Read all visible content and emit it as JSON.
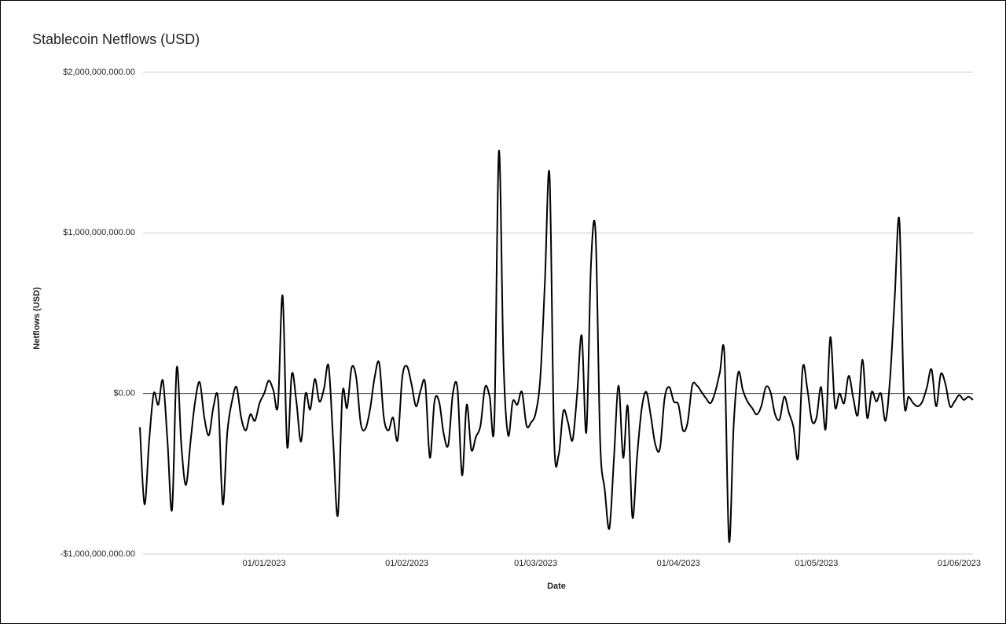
{
  "chart_data": {
    "type": "line",
    "title": "Stablecoin Netflows (USD)",
    "x_label": "Date",
    "y_label": "Netflows (USD)",
    "x": [
      "2022-12-05",
      "2022-12-06",
      "2022-12-07",
      "2022-12-08",
      "2022-12-09",
      "2022-12-10",
      "2022-12-11",
      "2022-12-12",
      "2022-12-13",
      "2022-12-14",
      "2022-12-15",
      "2022-12-16",
      "2022-12-17",
      "2022-12-18",
      "2022-12-19",
      "2022-12-20",
      "2022-12-21",
      "2022-12-22",
      "2022-12-23",
      "2022-12-24",
      "2022-12-25",
      "2022-12-26",
      "2022-12-27",
      "2022-12-28",
      "2022-12-29",
      "2022-12-30",
      "2022-12-31",
      "2023-01-01",
      "2023-01-02",
      "2023-01-03",
      "2023-01-04",
      "2023-01-05",
      "2023-01-06",
      "2023-01-07",
      "2023-01-08",
      "2023-01-09",
      "2023-01-10",
      "2023-01-11",
      "2023-01-12",
      "2023-01-13",
      "2023-01-14",
      "2023-01-15",
      "2023-01-16",
      "2023-01-17",
      "2023-01-18",
      "2023-01-19",
      "2023-01-20",
      "2023-01-21",
      "2023-01-22",
      "2023-01-23",
      "2023-01-24",
      "2023-01-25",
      "2023-01-26",
      "2023-01-27",
      "2023-01-28",
      "2023-01-29",
      "2023-01-30",
      "2023-01-31",
      "2023-02-01",
      "2023-02-02",
      "2023-02-03",
      "2023-02-04",
      "2023-02-05",
      "2023-02-06",
      "2023-02-07",
      "2023-02-08",
      "2023-02-09",
      "2023-02-10",
      "2023-02-11",
      "2023-02-12",
      "2023-02-13",
      "2023-02-14",
      "2023-02-15",
      "2023-02-16",
      "2023-02-17",
      "2023-02-18",
      "2023-02-19",
      "2023-02-20",
      "2023-02-21",
      "2023-02-22",
      "2023-02-23",
      "2023-02-24",
      "2023-02-25",
      "2023-02-26",
      "2023-02-27",
      "2023-02-28",
      "2023-03-01",
      "2023-03-02",
      "2023-03-03",
      "2023-03-04",
      "2023-03-05",
      "2023-03-06",
      "2023-03-07",
      "2023-03-08",
      "2023-03-09",
      "2023-03-10",
      "2023-03-11",
      "2023-03-12",
      "2023-03-13",
      "2023-03-14",
      "2023-03-15",
      "2023-03-16",
      "2023-03-17",
      "2023-03-18",
      "2023-03-19",
      "2023-03-20",
      "2023-03-21",
      "2023-03-22",
      "2023-03-23",
      "2023-03-24",
      "2023-03-25",
      "2023-03-26",
      "2023-03-27",
      "2023-03-28",
      "2023-03-29",
      "2023-03-30",
      "2023-03-31",
      "2023-04-01",
      "2023-04-02",
      "2023-04-03",
      "2023-04-04",
      "2023-04-05",
      "2023-04-06",
      "2023-04-07",
      "2023-04-08",
      "2023-04-09",
      "2023-04-10",
      "2023-04-11",
      "2023-04-12",
      "2023-04-13",
      "2023-04-14",
      "2023-04-15",
      "2023-04-16",
      "2023-04-17",
      "2023-04-18",
      "2023-04-19",
      "2023-04-20",
      "2023-04-21",
      "2023-04-22",
      "2023-04-23",
      "2023-04-24",
      "2023-04-25",
      "2023-04-26",
      "2023-04-27",
      "2023-04-28",
      "2023-04-29",
      "2023-04-30",
      "2023-05-01",
      "2023-05-02",
      "2023-05-03",
      "2023-05-04",
      "2023-05-05",
      "2023-05-06",
      "2023-05-07",
      "2023-05-08",
      "2023-05-09",
      "2023-05-10",
      "2023-05-11",
      "2023-05-12",
      "2023-05-13",
      "2023-05-14",
      "2023-05-15",
      "2023-05-16",
      "2023-05-17",
      "2023-05-18",
      "2023-05-19",
      "2023-05-20",
      "2023-05-21",
      "2023-05-22",
      "2023-05-23",
      "2023-05-24",
      "2023-05-25",
      "2023-05-26",
      "2023-05-27",
      "2023-05-28",
      "2023-05-29",
      "2023-05-30",
      "2023-05-31",
      "2023-06-01",
      "2023-06-02",
      "2023-06-03",
      "2023-06-04"
    ],
    "values": [
      -210000000,
      -690000000,
      -300000000,
      0,
      -70000000,
      80000000,
      -300000000,
      -720000000,
      160000000,
      -320000000,
      -570000000,
      -300000000,
      -50000000,
      70000000,
      -150000000,
      -260000000,
      -80000000,
      -40000000,
      -690000000,
      -240000000,
      -50000000,
      40000000,
      -150000000,
      -230000000,
      -130000000,
      -170000000,
      -60000000,
      0,
      80000000,
      20000000,
      -70000000,
      610000000,
      -330000000,
      120000000,
      -50000000,
      -300000000,
      0,
      -100000000,
      90000000,
      -50000000,
      30000000,
      170000000,
      -300000000,
      -760000000,
      0,
      -90000000,
      160000000,
      100000000,
      -190000000,
      -220000000,
      -100000000,
      100000000,
      190000000,
      -150000000,
      -230000000,
      -150000000,
      -290000000,
      100000000,
      170000000,
      60000000,
      -80000000,
      20000000,
      60000000,
      -400000000,
      -50000000,
      -50000000,
      -250000000,
      -320000000,
      0,
      30000000,
      -510000000,
      -70000000,
      -350000000,
      -270000000,
      -200000000,
      40000000,
      -20000000,
      -180000000,
      1510000000,
      200000000,
      -260000000,
      -50000000,
      -70000000,
      10000000,
      -200000000,
      -180000000,
      -120000000,
      100000000,
      700000000,
      1360000000,
      -290000000,
      -380000000,
      -110000000,
      -180000000,
      -290000000,
      0,
      360000000,
      -240000000,
      800000000,
      1000000000,
      -300000000,
      -600000000,
      -840000000,
      -400000000,
      50000000,
      -400000000,
      -80000000,
      -770000000,
      -400000000,
      -100000000,
      10000000,
      -140000000,
      -320000000,
      -340000000,
      -30000000,
      40000000,
      -50000000,
      -70000000,
      -230000000,
      -180000000,
      50000000,
      50000000,
      10000000,
      -30000000,
      -60000000,
      10000000,
      130000000,
      240000000,
      -920000000,
      -200000000,
      130000000,
      20000000,
      -50000000,
      -90000000,
      -130000000,
      -80000000,
      40000000,
      10000000,
      -130000000,
      -160000000,
      -20000000,
      -120000000,
      -210000000,
      -400000000,
      160000000,
      30000000,
      -170000000,
      -150000000,
      40000000,
      -220000000,
      350000000,
      -80000000,
      0,
      -60000000,
      110000000,
      -30000000,
      -130000000,
      210000000,
      -150000000,
      10000000,
      -50000000,
      0,
      -170000000,
      100000000,
      600000000,
      1080000000,
      -30000000,
      -20000000,
      -60000000,
      -80000000,
      -50000000,
      40000000,
      150000000,
      -80000000,
      120000000,
      60000000,
      -80000000,
      -50000000,
      -10000000,
      -40000000,
      -20000000,
      -40000000
    ],
    "color": "#000000",
    "xlim": [
      "2022-12-05",
      "2023-06-04"
    ],
    "xticks": [
      {
        "value": "2023-01-01",
        "label": "01/01/2023"
      },
      {
        "value": "2023-02-01",
        "label": "01/02/2023"
      },
      {
        "value": "2023-03-01",
        "label": "01/03/2023"
      },
      {
        "value": "2023-04-01",
        "label": "01/04/2023"
      },
      {
        "value": "2023-05-01",
        "label": "01/05/2023"
      },
      {
        "value": "2023-06-01",
        "label": "01/06/2023"
      }
    ],
    "ylim": [
      -1000000000,
      2000000000
    ],
    "yticks": [
      {
        "value": -1000000000,
        "label": "-$1,000,000,000.00"
      },
      {
        "value": 0,
        "label": "$0.00"
      },
      {
        "value": 1000000000,
        "label": "$1,000,000,000.00"
      },
      {
        "value": 2000000000,
        "label": "$2,000,000,000.00"
      }
    ],
    "grid": true
  }
}
